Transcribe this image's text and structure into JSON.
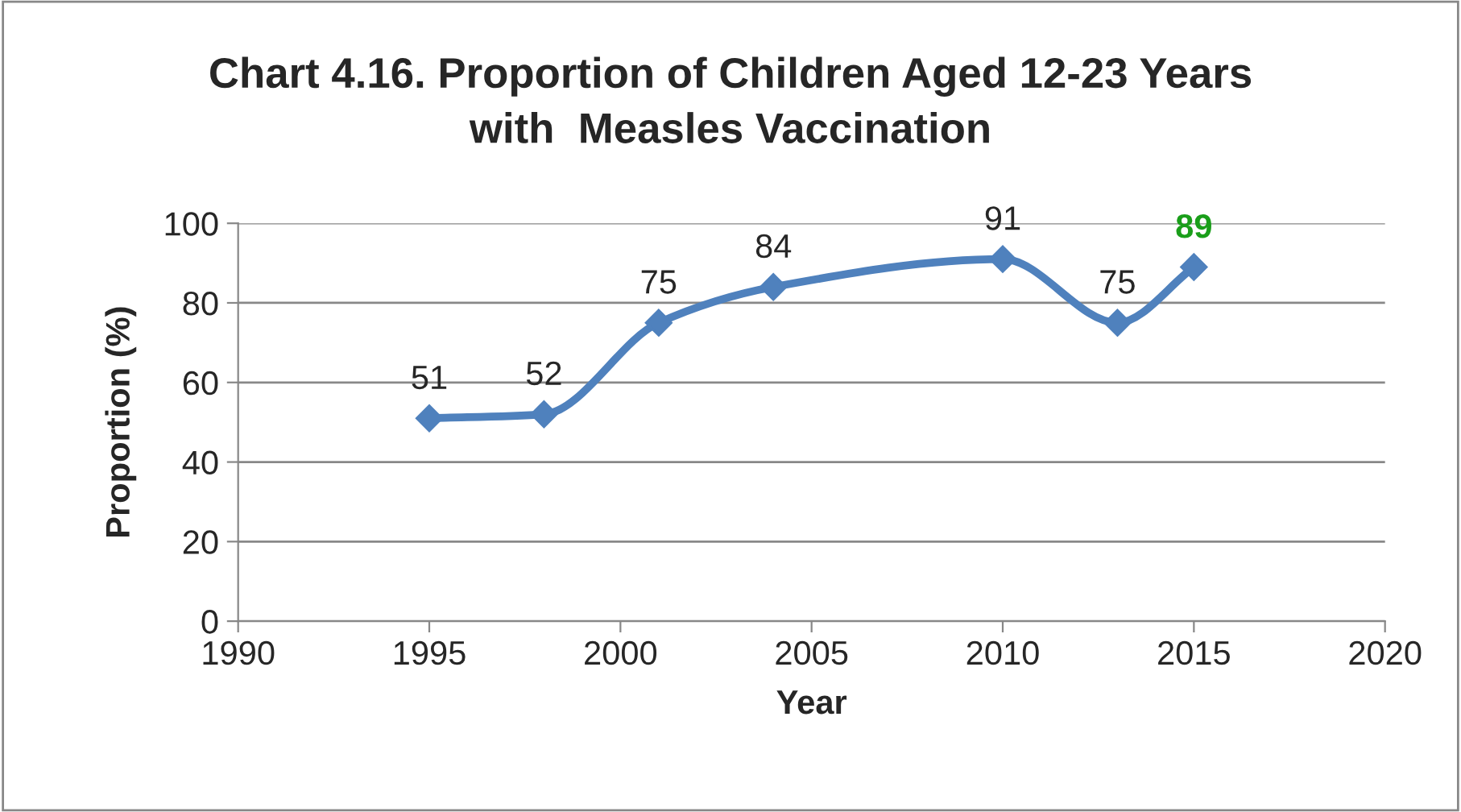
{
  "chart_data": {
    "type": "line",
    "title": "Chart 4.16. Proportion of Children Aged 12-23 Years\nwith  Measles Vaccination",
    "xlabel": "Year",
    "ylabel": "Proportion (%)",
    "x": [
      1995,
      1998,
      2001,
      2004,
      2010,
      2013,
      2015
    ],
    "series": [
      {
        "color": "#4f81bd",
        "values": [
          51,
          52,
          75,
          84,
          91,
          75,
          89
        ],
        "value_labels": [
          "51",
          "52",
          "75",
          "84",
          "91",
          "75",
          null
        ]
      }
    ],
    "annotations": [
      {
        "text": "89",
        "x": 2015,
        "y": 89
      }
    ],
    "xlim": [
      1990,
      2020
    ],
    "xticks": [
      1990,
      1995,
      2000,
      2005,
      2010,
      2015,
      2020
    ],
    "ylim": [
      0,
      100
    ],
    "yticks": [
      0,
      20,
      40,
      60,
      80,
      100
    ],
    "grid": "y",
    "marker": "diamond",
    "line_style": "solid"
  }
}
